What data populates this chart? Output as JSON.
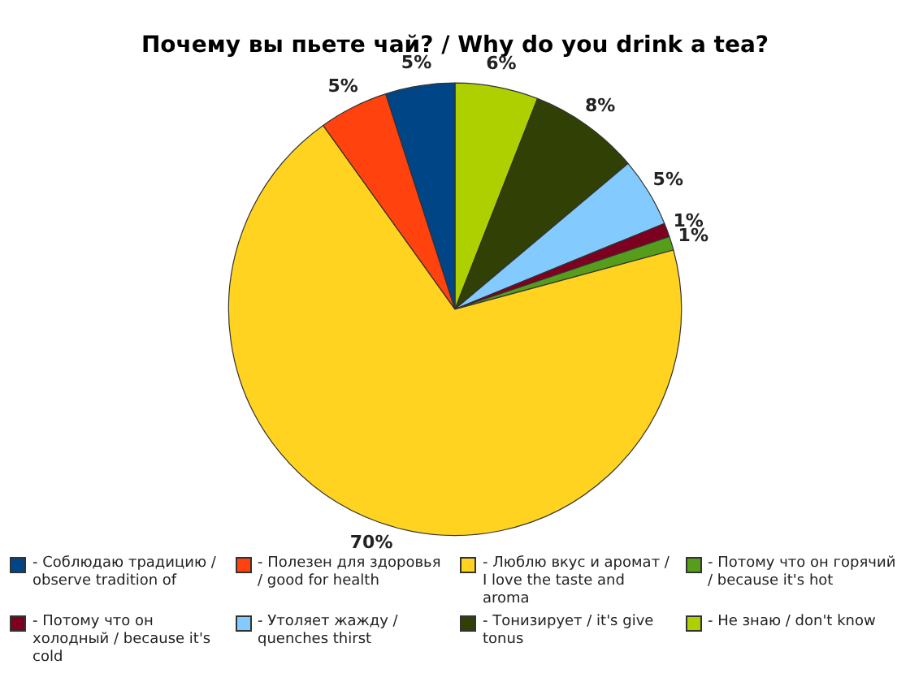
{
  "chart_data": {
    "type": "pie",
    "title": "Почему вы пьете чай? / Why do you drink a tea?",
    "categories": [
      "- Соблюдаю традицию / observe tradition of",
      "- Полезен для здоровья / good for health",
      "- Люблю вкус и аромат / I love the taste and aroma",
      "- Потому что он горячий / because it's hot",
      "- Потому что он холодный / because it's cold",
      "- Утоляет жажду / quenches thirst",
      "- Тонизирует / it's give tonus",
      "- Не знаю / don't know"
    ],
    "values": [
      5,
      5,
      70,
      1,
      1,
      5,
      8,
      6
    ],
    "value_labels": [
      "5%",
      "5%",
      "70%",
      "1%",
      "1%",
      "5%",
      "8%",
      "6%"
    ],
    "colors": [
      "#004586",
      "#ff420e",
      "#ffd320",
      "#579d1c",
      "#7e0021",
      "#83caff",
      "#314004",
      "#aecf00"
    ],
    "legend": "bottom"
  }
}
